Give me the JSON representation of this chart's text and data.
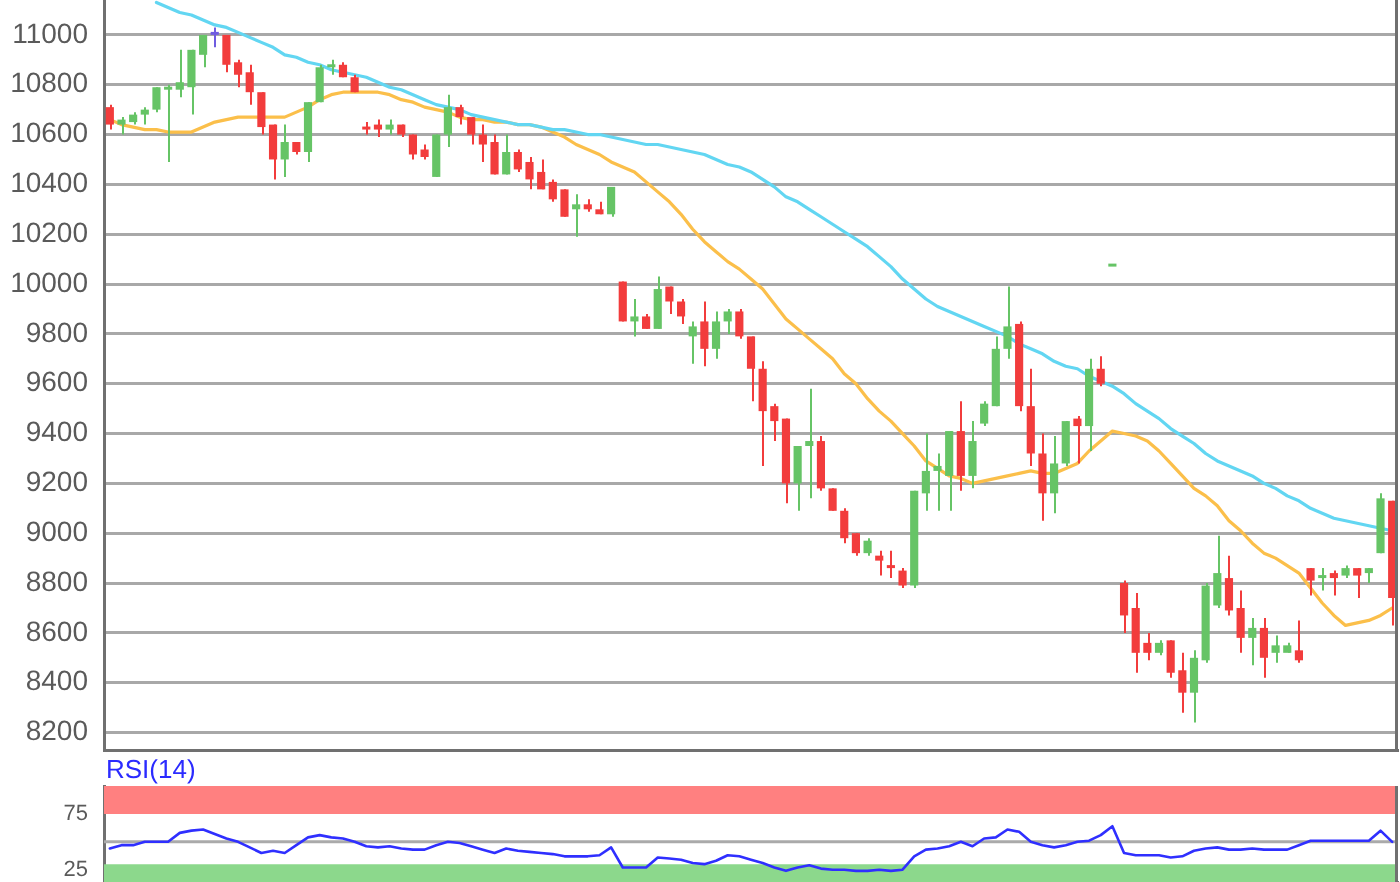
{
  "chart_data": [
    {
      "type": "candlestick",
      "categories": [
        null,
        null,
        null,
        null,
        null,
        null,
        null,
        null,
        null,
        null,
        null,
        null,
        null,
        null,
        null,
        null,
        null,
        null,
        null,
        null,
        null,
        null,
        null,
        null,
        null,
        null,
        null,
        null,
        null,
        null,
        null,
        null,
        null,
        null,
        null,
        null,
        null,
        null,
        null,
        null,
        null,
        null,
        null,
        null,
        null,
        null,
        null,
        null,
        null,
        null,
        null,
        null,
        null,
        null,
        null,
        null,
        null,
        null,
        null,
        null,
        null,
        null,
        null,
        null,
        null,
        null,
        null,
        null,
        null,
        null,
        null,
        null,
        null,
        null,
        null,
        null,
        null,
        null,
        null,
        null,
        null,
        null,
        null,
        null,
        null,
        null,
        null,
        null,
        null,
        null,
        null,
        null,
        null,
        null,
        null,
        null,
        null,
        null,
        null,
        null,
        null,
        null,
        null,
        null,
        null,
        null,
        null,
        null,
        null,
        null,
        null
      ],
      "ylim": [
        8130,
        11140
      ],
      "yticks": [
        8200,
        8400,
        8600,
        8800,
        9000,
        9200,
        9400,
        9600,
        9800,
        10000,
        10200,
        10400,
        10600,
        10800,
        11000
      ],
      "grid": "y",
      "tick_labels": "y",
      "marker": "none",
      "series": [
        {
          "ohlc": [
            [
              10710,
              10720,
              10620,
              10640
            ],
            [
              10640,
              10670,
              10600,
              10660
            ],
            [
              10650,
              10690,
              10640,
              10680
            ],
            [
              10680,
              10710,
              10640,
              10700
            ],
            [
              10700,
              10790,
              10690,
              10790
            ],
            [
              10780,
              10800,
              10490,
              10790
            ],
            [
              10780,
              10940,
              10750,
              10810
            ],
            [
              10790,
              10940,
              10680,
              10940
            ],
            [
              10920,
              11000,
              10870,
              11000
            ],
            [
              11000,
              11030,
              10950,
              11000
            ],
            [
              11000,
              11000,
              10850,
              10880
            ],
            [
              10890,
              10900,
              10790,
              10840
            ],
            [
              10850,
              10880,
              10720,
              10770
            ],
            [
              10770,
              10770,
              10600,
              10630
            ],
            [
              10640,
              10640,
              10420,
              10500
            ],
            [
              10500,
              10640,
              10430,
              10570
            ],
            [
              10570,
              10570,
              10520,
              10530
            ],
            [
              10530,
              10730,
              10490,
              10730
            ],
            [
              10730,
              10880,
              10730,
              10870
            ],
            [
              10870,
              10900,
              10840,
              10880
            ],
            [
              10880,
              10890,
              10830,
              10830
            ],
            [
              10830,
              10840,
              10770,
              10770
            ],
            [
              10630,
              10650,
              10600,
              10620
            ],
            [
              10640,
              10660,
              10590,
              10620
            ],
            [
              10620,
              10660,
              10600,
              10640
            ],
            [
              10640,
              10640,
              10590,
              10600
            ],
            [
              10600,
              10600,
              10500,
              10520
            ],
            [
              10540,
              10560,
              10500,
              10510
            ],
            [
              10430,
              10600,
              10430,
              10600
            ],
            [
              10600,
              10760,
              10550,
              10710
            ],
            [
              10710,
              10720,
              10640,
              10670
            ],
            [
              10670,
              10670,
              10560,
              10600
            ],
            [
              10600,
              10640,
              10490,
              10560
            ],
            [
              10570,
              10600,
              10440,
              10440
            ],
            [
              10440,
              10600,
              10440,
              10530
            ],
            [
              10530,
              10540,
              10450,
              10460
            ],
            [
              10490,
              10510,
              10380,
              10420
            ],
            [
              10450,
              10500,
              10380,
              10380
            ],
            [
              10410,
              10420,
              10330,
              10340
            ],
            [
              10380,
              10380,
              10270,
              10270
            ],
            [
              10300,
              10360,
              10190,
              10320
            ],
            [
              10320,
              10340,
              10290,
              10300
            ],
            [
              10300,
              10330,
              10280,
              10280
            ],
            [
              10280,
              10390,
              10270,
              10390
            ],
            [
              10010,
              10010,
              9850,
              9850
            ],
            [
              9850,
              9940,
              9790,
              9870
            ],
            [
              9870,
              9880,
              9820,
              9820
            ],
            [
              9820,
              10030,
              9820,
              9980
            ],
            [
              9990,
              9990,
              9880,
              9930
            ],
            [
              9930,
              9940,
              9840,
              9870
            ],
            [
              9790,
              9850,
              9680,
              9830
            ],
            [
              9850,
              9930,
              9670,
              9740
            ],
            [
              9740,
              9890,
              9700,
              9850
            ],
            [
              9850,
              9900,
              9800,
              9890
            ],
            [
              9890,
              9900,
              9780,
              9790
            ],
            [
              9790,
              9790,
              9530,
              9660
            ],
            [
              9660,
              9690,
              9270,
              9490
            ],
            [
              9510,
              9520,
              9370,
              9450
            ],
            [
              9460,
              9460,
              9120,
              9200
            ],
            [
              9200,
              9350,
              9090,
              9350
            ],
            [
              9350,
              9580,
              9140,
              9370
            ],
            [
              9370,
              9390,
              9170,
              9180
            ],
            [
              9180,
              9180,
              9090,
              9090
            ],
            [
              9090,
              9100,
              8960,
              8980
            ],
            [
              9000,
              9000,
              8910,
              8920
            ],
            [
              8920,
              8980,
              8910,
              8970
            ],
            [
              8910,
              8930,
              8830,
              8890
            ],
            [
              8870,
              8930,
              8820,
              8860
            ],
            [
              8850,
              8860,
              8780,
              8790
            ],
            [
              8790,
              9170,
              8780,
              9170
            ],
            [
              9160,
              9400,
              9090,
              9250
            ],
            [
              9250,
              9320,
              9090,
              9270
            ],
            [
              9230,
              9410,
              9090,
              9410
            ],
            [
              9410,
              9530,
              9170,
              9230
            ],
            [
              9230,
              9450,
              9180,
              9370
            ],
            [
              9440,
              9530,
              9430,
              9520
            ],
            [
              9510,
              9790,
              9510,
              9740
            ],
            [
              9740,
              9990,
              9700,
              9830
            ],
            [
              9840,
              9850,
              9490,
              9510
            ],
            [
              9510,
              9660,
              9270,
              9320
            ],
            [
              9320,
              9400,
              9050,
              9160
            ],
            [
              9160,
              9390,
              9080,
              9280
            ],
            [
              9280,
              9450,
              9270,
              9450
            ],
            [
              9460,
              9470,
              9280,
              9430
            ],
            [
              9430,
              9700,
              9330,
              9660
            ],
            [
              9660,
              9710,
              9590,
              9600
            ],
            [
              10070,
              10070,
              10070,
              10070
            ],
            [
              8800,
              8810,
              8600,
              8670
            ],
            [
              8700,
              8760,
              8440,
              8520
            ],
            [
              8560,
              8600,
              8490,
              8520
            ],
            [
              8520,
              8570,
              8510,
              8560
            ],
            [
              8570,
              8570,
              8420,
              8440
            ],
            [
              8450,
              8520,
              8280,
              8360
            ],
            [
              8360,
              8530,
              8240,
              8500
            ],
            [
              8490,
              8800,
              8480,
              8790
            ],
            [
              8710,
              8990,
              8700,
              8840
            ],
            [
              8820,
              8910,
              8670,
              8690
            ],
            [
              8700,
              8770,
              8520,
              8580
            ],
            [
              8580,
              8660,
              8470,
              8620
            ],
            [
              8620,
              8660,
              8420,
              8500
            ],
            [
              8520,
              8590,
              8480,
              8550
            ],
            [
              8520,
              8560,
              8520,
              8550
            ],
            [
              8530,
              8650,
              8480,
              8490
            ],
            [
              8860,
              8860,
              8750,
              8810
            ],
            [
              8820,
              8860,
              8770,
              8830
            ],
            [
              8840,
              8850,
              8750,
              8820
            ],
            [
              8830,
              8870,
              8820,
              8860
            ],
            [
              8860,
              8860,
              8740,
              8830
            ],
            [
              8840,
              8860,
              8800,
              8860
            ],
            [
              8920,
              9160,
              8920,
              9140
            ],
            [
              9130,
              9130,
              8630,
              8740
            ]
          ],
          "colors": [
            "#f23c3c",
            "#66c466",
            "#66c466",
            "#66c466",
            "#66c466",
            "#66c466",
            "#66c466",
            "#66c466",
            "#66c466",
            "#6f5ce0",
            "#f23c3c",
            "#f23c3c",
            "#f23c3c",
            "#f23c3c",
            "#f23c3c",
            "#66c466",
            "#f23c3c",
            "#66c466",
            "#66c466",
            "#66c466",
            "#f23c3c",
            "#f23c3c",
            "#f23c3c",
            "#f23c3c",
            "#66c466",
            "#f23c3c",
            "#f23c3c",
            "#f23c3c",
            "#66c466",
            "#66c466",
            "#f23c3c",
            "#f23c3c",
            "#f23c3c",
            "#f23c3c",
            "#66c466",
            "#f23c3c",
            "#f23c3c",
            "#f23c3c",
            "#f23c3c",
            "#f23c3c",
            "#66c466",
            "#f23c3c",
            "#f23c3c",
            "#66c466",
            "#f23c3c",
            "#66c466",
            "#f23c3c",
            "#66c466",
            "#f23c3c",
            "#f23c3c",
            "#66c466",
            "#f23c3c",
            "#66c466",
            "#66c466",
            "#f23c3c",
            "#f23c3c",
            "#f23c3c",
            "#f23c3c",
            "#f23c3c",
            "#66c466",
            "#66c466",
            "#f23c3c",
            "#f23c3c",
            "#f23c3c",
            "#f23c3c",
            "#66c466",
            "#f23c3c",
            "#f23c3c",
            "#f23c3c",
            "#66c466",
            "#66c466",
            "#66c466",
            "#66c466",
            "#f23c3c",
            "#66c466",
            "#66c466",
            "#66c466",
            "#66c466",
            "#f23c3c",
            "#f23c3c",
            "#f23c3c",
            "#66c466",
            "#66c466",
            "#f23c3c",
            "#66c466",
            "#f23c3c",
            "#66c466",
            "#f23c3c",
            "#f23c3c",
            "#f23c3c",
            "#66c466",
            "#f23c3c",
            "#f23c3c",
            "#66c466",
            "#66c466",
            "#66c466",
            "#f23c3c",
            "#f23c3c",
            "#66c466",
            "#f23c3c",
            "#66c466",
            "#66c466",
            "#f23c3c",
            "#f23c3c",
            "#66c466",
            "#f23c3c",
            "#66c466",
            "#f23c3c",
            "#66c466",
            "#66c466",
            "#f23c3c"
          ]
        },
        {
          "type": "line",
          "color": "#62d6f2",
          "values": [
            null,
            null,
            null,
            null,
            11130,
            11110,
            11090,
            11080,
            11060,
            11040,
            11030,
            11010,
            10990,
            10970,
            10950,
            10920,
            10910,
            10890,
            10880,
            10860,
            10850,
            10840,
            10830,
            10810,
            10790,
            10780,
            10760,
            10740,
            10720,
            10710,
            10700,
            10680,
            10670,
            10660,
            10650,
            10640,
            10640,
            10630,
            10620,
            10620,
            10610,
            10600,
            10600,
            10590,
            10580,
            10570,
            10560,
            10560,
            10550,
            10540,
            10530,
            10520,
            10500,
            10480,
            10470,
            10450,
            10420,
            10390,
            10350,
            10330,
            10300,
            10270,
            10240,
            10210,
            10180,
            10150,
            10110,
            10070,
            10020,
            9980,
            9940,
            9910,
            9890,
            9870,
            9850,
            9830,
            9810,
            9790,
            9760,
            9740,
            9720,
            9690,
            9670,
            9660,
            9630,
            9610,
            9590,
            9560,
            9520,
            9490,
            9460,
            9420,
            9390,
            9360,
            9320,
            9290,
            9270,
            9250,
            9230,
            9200,
            9180,
            9150,
            9130,
            9100,
            9080,
            9060,
            9050,
            9040,
            9030,
            9020,
            9010
          ]
        },
        {
          "type": "line",
          "color": "#fbbf4a",
          "values": [
            10660,
            10640,
            10630,
            10620,
            10620,
            10610,
            10610,
            10610,
            10630,
            10650,
            10660,
            10670,
            10670,
            10670,
            10670,
            10670,
            10690,
            10710,
            10740,
            10760,
            10770,
            10770,
            10770,
            10770,
            10760,
            10740,
            10730,
            10710,
            10700,
            10690,
            10670,
            10660,
            10660,
            10650,
            10650,
            10640,
            10640,
            10630,
            10610,
            10590,
            10560,
            10540,
            10520,
            10490,
            10470,
            10450,
            10410,
            10370,
            10330,
            10280,
            10220,
            10170,
            10130,
            10090,
            10060,
            10020,
            9980,
            9920,
            9860,
            9820,
            9780,
            9740,
            9700,
            9640,
            9600,
            9540,
            9490,
            9450,
            9400,
            9350,
            9290,
            9260,
            9230,
            9220,
            9200,
            9210,
            9220,
            9230,
            9240,
            9250,
            9240,
            9240,
            9260,
            9280,
            9330,
            9370,
            9410,
            9400,
            9390,
            9370,
            9330,
            9280,
            9230,
            9180,
            9150,
            9110,
            9050,
            9010,
            8960,
            8920,
            8900,
            8870,
            8840,
            8780,
            8720,
            8670,
            8630,
            8640,
            8650,
            8670,
            8700
          ]
        }
      ]
    },
    {
      "type": "line",
      "title": "RSI(14)",
      "categories": [
        null,
        null,
        null,
        null,
        null,
        null,
        null,
        null,
        null,
        null,
        null,
        null,
        null,
        null,
        null,
        null,
        null,
        null,
        null,
        null,
        null,
        null,
        null,
        null,
        null,
        null,
        null,
        null,
        null,
        null,
        null,
        null,
        null,
        null,
        null,
        null,
        null,
        null,
        null,
        null,
        null,
        null,
        null,
        null,
        null,
        null,
        null,
        null,
        null,
        null,
        null,
        null,
        null,
        null,
        null,
        null,
        null,
        null,
        null,
        null,
        null,
        null,
        null,
        null,
        null,
        null,
        null,
        null,
        null,
        null,
        null,
        null,
        null,
        null,
        null,
        null,
        null,
        null,
        null,
        null,
        null,
        null,
        null,
        null,
        null,
        null,
        null,
        null,
        null,
        null,
        null,
        null,
        null,
        null,
        null,
        null,
        null,
        null,
        null,
        null,
        null,
        null,
        null,
        null,
        null,
        null,
        null,
        null,
        null,
        null,
        null
      ],
      "ylim": [
        14,
        100
      ],
      "yticks": [
        25,
        75
      ],
      "tick_labels": "y",
      "marker": "none",
      "bands": [
        {
          "axis": "y",
          "from": 75,
          "to": 100,
          "color": "#ff8080"
        },
        {
          "axis": "y",
          "from": 14,
          "to": 30,
          "color": "#8cd88c"
        }
      ],
      "ref_lines": [
        {
          "axis": "y",
          "value": 50,
          "color": "#aaaaaa"
        }
      ],
      "series": [
        {
          "color": "#2f2fff",
          "values": [
            44,
            47,
            47,
            50,
            50,
            50,
            58,
            60,
            61,
            57,
            53,
            50,
            45,
            40,
            42,
            40,
            47,
            54,
            56,
            54,
            53,
            50,
            46,
            45,
            46,
            44,
            43,
            43,
            47,
            50,
            49,
            46,
            43,
            40,
            44,
            42,
            41,
            40,
            39,
            37,
            37,
            37,
            38,
            45,
            27,
            27,
            27,
            36,
            35,
            34,
            31,
            30,
            33,
            38,
            37,
            34,
            31,
            27,
            24,
            27,
            29,
            26,
            25,
            25,
            24,
            24,
            25,
            24,
            25,
            37,
            43,
            44,
            46,
            50,
            46,
            53,
            54,
            61,
            59,
            50,
            47,
            45,
            47,
            50,
            51,
            56,
            64,
            40,
            38,
            38,
            38,
            36,
            37,
            42,
            44,
            45,
            43,
            43,
            44,
            43,
            43,
            43,
            47,
            51,
            51,
            51,
            51,
            51,
            51,
            60,
            50
          ]
        }
      ]
    }
  ]
}
